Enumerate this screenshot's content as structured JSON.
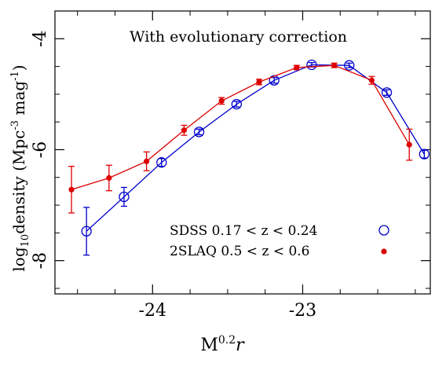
{
  "chart_data": {
    "type": "line",
    "annotation": "With evolutionary correction",
    "xlabel": {
      "main": "M",
      "sup": "0.2",
      "tail": "r"
    },
    "ylabel": {
      "a": "log",
      "a_sub": "10",
      "b": "density (Mpc",
      "b_sup": "-3",
      "c": " mag",
      "c_sup": "-1",
      "d": ")"
    },
    "xlim": [
      -24.65,
      -22.15
    ],
    "ylim": [
      -8.6,
      -3.5
    ],
    "x_reversed": true,
    "x_ticks": [
      {
        "value": -24,
        "label": "-24"
      },
      {
        "value": -23,
        "label": "-23"
      }
    ],
    "y_ticks": [
      {
        "value": -4,
        "label": "-4"
      },
      {
        "value": -6,
        "label": "-6"
      },
      {
        "value": -8,
        "label": "-8"
      }
    ],
    "x_minor_step": 0.25,
    "y_minor_step": 0.5,
    "series": [
      {
        "name": "SDSS 0.17 < z < 0.24",
        "color": "#0000cc",
        "marker": "open-circle",
        "x": [
          -24.44,
          -24.19,
          -23.94,
          -23.69,
          -23.44,
          -23.19,
          -22.94,
          -22.69,
          -22.44,
          -22.19
        ],
        "y": [
          -7.47,
          -6.85,
          -6.23,
          -5.68,
          -5.18,
          -4.75,
          -4.47,
          -4.48,
          -4.97,
          -6.08
        ],
        "err": [
          0.43,
          0.17,
          0.07,
          0.05,
          0.05,
          0.05,
          0.04,
          0.04,
          0.05,
          0.07
        ]
      },
      {
        "name": "2SLAQ 0.5 < z < 0.6",
        "color": "#dd0000",
        "marker": "filled-circle",
        "x": [
          -24.54,
          -24.29,
          -24.04,
          -23.79,
          -23.54,
          -23.29,
          -23.04,
          -22.79,
          -22.54,
          -22.29
        ],
        "y": [
          -6.72,
          -6.51,
          -6.21,
          -5.65,
          -5.12,
          -4.78,
          -4.52,
          -4.48,
          -4.75,
          -5.91
        ],
        "err": [
          0.42,
          0.23,
          0.17,
          0.09,
          0.06,
          0.05,
          0.04,
          0.04,
          0.07,
          0.28
        ]
      }
    ]
  }
}
